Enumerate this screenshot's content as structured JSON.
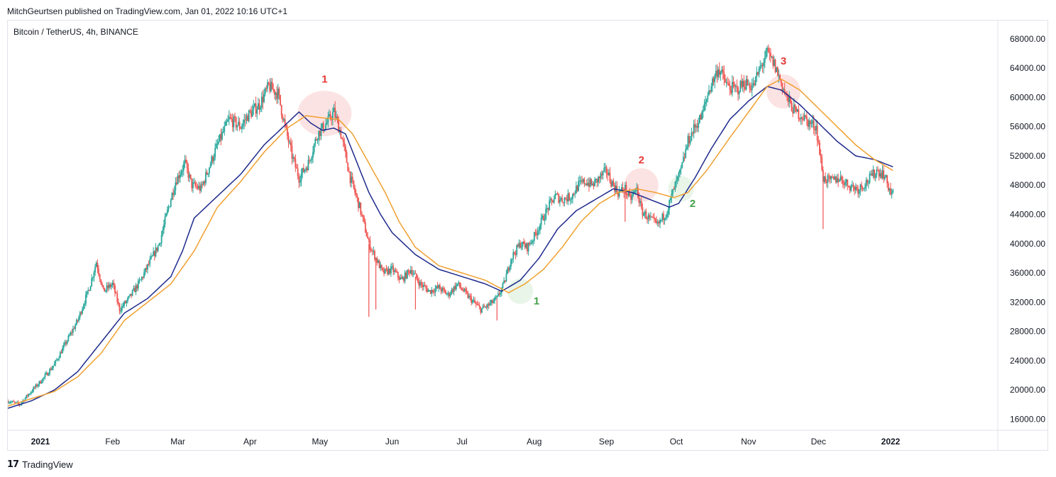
{
  "header": {
    "publisher": "MitchGeurtsen published on TradingView.com, Jan 01, 2022 10:16 UTC+1"
  },
  "symbol": {
    "label": "Bitcoin / TetherUS, 4h, BINANCE"
  },
  "footer": {
    "brand": "TradingView",
    "logo_icon": "tradingview-logo-icon"
  },
  "colors": {
    "up": "#26a69a",
    "down": "#ef5350",
    "ma_fast": "#1e2a8c",
    "ma_slow": "#f0a030",
    "red_marker": "#e53935",
    "green_marker": "#43a047"
  },
  "chart_data": {
    "type": "candlestick",
    "symbol": "Bitcoin / TetherUS",
    "interval": "4h",
    "exchange": "BINANCE",
    "y_ticks": [
      "68000.00",
      "64000.00",
      "60000.00",
      "56000.00",
      "52000.00",
      "48000.00",
      "44000.00",
      "40000.00",
      "36000.00",
      "32000.00",
      "28000.00",
      "24000.00",
      "20000.00",
      "16000.00"
    ],
    "ylim": [
      14500,
      70500
    ],
    "x_ticks": [
      "2021",
      "Feb",
      "Mar",
      "Apr",
      "May",
      "Jun",
      "Jul",
      "Aug",
      "Sep",
      "Oct",
      "Nov",
      "Dec",
      "2022"
    ],
    "x_tick_days": [
      14,
      45,
      73,
      104,
      134,
      165,
      195,
      226,
      257,
      287,
      318,
      348,
      379
    ],
    "xlim": [
      0,
      425
    ],
    "price_anchors": [
      [
        0,
        18500
      ],
      [
        5,
        18000
      ],
      [
        10,
        19800
      ],
      [
        15,
        21500
      ],
      [
        20,
        23500
      ],
      [
        25,
        26500
      ],
      [
        30,
        29500
      ],
      [
        35,
        34000
      ],
      [
        38,
        37500
      ],
      [
        41,
        33500
      ],
      [
        45,
        34500
      ],
      [
        48,
        31000
      ],
      [
        52,
        32500
      ],
      [
        57,
        35000
      ],
      [
        61,
        37500
      ],
      [
        65,
        40000
      ],
      [
        69,
        45000
      ],
      [
        72,
        48500
      ],
      [
        76,
        51000
      ],
      [
        79,
        48000
      ],
      [
        83,
        47500
      ],
      [
        87,
        51000
      ],
      [
        90,
        53500
      ],
      [
        95,
        57000
      ],
      [
        100,
        56000
      ],
      [
        103,
        57500
      ],
      [
        108,
        59000
      ],
      [
        112,
        61500
      ],
      [
        116,
        60500
      ],
      [
        119,
        56000
      ],
      [
        122,
        52000
      ],
      [
        125,
        49000
      ],
      [
        129,
        51000
      ],
      [
        133,
        55000
      ],
      [
        137,
        56500
      ],
      [
        140,
        58000
      ],
      [
        143,
        55000
      ],
      [
        147,
        49000
      ],
      [
        151,
        45000
      ],
      [
        155,
        40000
      ],
      [
        158,
        38000
      ],
      [
        161,
        36000
      ],
      [
        165,
        36500
      ],
      [
        169,
        35000
      ],
      [
        173,
        36500
      ],
      [
        177,
        34500
      ],
      [
        181,
        33500
      ],
      [
        185,
        34000
      ],
      [
        189,
        33000
      ],
      [
        193,
        34500
      ],
      [
        197,
        33000
      ],
      [
        200,
        32000
      ],
      [
        203,
        31000
      ],
      [
        206,
        31500
      ],
      [
        210,
        32500
      ],
      [
        213,
        34500
      ],
      [
        216,
        38000
      ],
      [
        220,
        40000
      ],
      [
        223,
        39500
      ],
      [
        226,
        41000
      ],
      [
        229,
        43000
      ],
      [
        232,
        45000
      ],
      [
        235,
        46500
      ],
      [
        238,
        46000
      ],
      [
        242,
        46500
      ],
      [
        245,
        48000
      ],
      [
        248,
        48500
      ],
      [
        251,
        48000
      ],
      [
        254,
        49000
      ],
      [
        257,
        50000
      ],
      [
        259,
        48500
      ],
      [
        262,
        47000
      ],
      [
        265,
        47500
      ],
      [
        267,
        46000
      ],
      [
        270,
        47500
      ],
      [
        272,
        44500
      ],
      [
        275,
        43500
      ],
      [
        279,
        42500
      ],
      [
        283,
        44500
      ],
      [
        286,
        47500
      ],
      [
        289,
        50000
      ],
      [
        292,
        54000
      ],
      [
        295,
        56000
      ],
      [
        298,
        57500
      ],
      [
        301,
        61000
      ],
      [
        305,
        64000
      ],
      [
        309,
        61500
      ],
      [
        313,
        61000
      ],
      [
        316,
        62000
      ],
      [
        320,
        61500
      ],
      [
        323,
        64000
      ],
      [
        326,
        66000
      ],
      [
        329,
        64500
      ],
      [
        332,
        62000
      ],
      [
        335,
        59500
      ],
      [
        338,
        58000
      ],
      [
        341,
        57500
      ],
      [
        344,
        56500
      ],
      [
        347,
        56000
      ],
      [
        350,
        49000
      ],
      [
        353,
        48500
      ],
      [
        357,
        49000
      ],
      [
        361,
        48000
      ],
      [
        365,
        47500
      ],
      [
        369,
        48500
      ],
      [
        373,
        50000
      ],
      [
        376,
        49500
      ],
      [
        379,
        47000
      ],
      [
        380,
        46800
      ]
    ],
    "series": [
      {
        "name": "",
        "color": "#1e2a8c",
        "anchors": [
          [
            0,
            17500
          ],
          [
            10,
            18500
          ],
          [
            20,
            20000
          ],
          [
            30,
            22500
          ],
          [
            40,
            26500
          ],
          [
            50,
            30500
          ],
          [
            60,
            32500
          ],
          [
            70,
            35500
          ],
          [
            75,
            39000
          ],
          [
            80,
            43500
          ],
          [
            90,
            46500
          ],
          [
            100,
            49500
          ],
          [
            110,
            53500
          ],
          [
            120,
            56500
          ],
          [
            125,
            58000
          ],
          [
            130,
            56500
          ],
          [
            135,
            55500
          ],
          [
            140,
            55800
          ],
          [
            145,
            55000
          ],
          [
            150,
            51000
          ],
          [
            155,
            47000
          ],
          [
            160,
            44000
          ],
          [
            165,
            41500
          ],
          [
            175,
            38500
          ],
          [
            185,
            36500
          ],
          [
            195,
            35500
          ],
          [
            205,
            34500
          ],
          [
            212,
            33500
          ],
          [
            220,
            35000
          ],
          [
            228,
            38000
          ],
          [
            236,
            42000
          ],
          [
            244,
            44500
          ],
          [
            252,
            46000
          ],
          [
            260,
            47500
          ],
          [
            268,
            47000
          ],
          [
            276,
            46000
          ],
          [
            284,
            45000
          ],
          [
            288,
            45500
          ],
          [
            295,
            49000
          ],
          [
            302,
            53000
          ],
          [
            310,
            57000
          ],
          [
            318,
            59500
          ],
          [
            326,
            61500
          ],
          [
            332,
            61000
          ],
          [
            340,
            59000
          ],
          [
            348,
            56500
          ],
          [
            356,
            54000
          ],
          [
            364,
            52000
          ],
          [
            372,
            51500
          ],
          [
            380,
            50500
          ]
        ]
      },
      {
        "name": "",
        "color": "#f0a030",
        "anchors": [
          [
            0,
            17800
          ],
          [
            10,
            18800
          ],
          [
            20,
            19800
          ],
          [
            30,
            21800
          ],
          [
            40,
            25000
          ],
          [
            50,
            29500
          ],
          [
            60,
            32000
          ],
          [
            70,
            34500
          ],
          [
            80,
            39000
          ],
          [
            90,
            45000
          ],
          [
            100,
            48500
          ],
          [
            110,
            52500
          ],
          [
            120,
            55800
          ],
          [
            128,
            57500
          ],
          [
            135,
            57200
          ],
          [
            142,
            57000
          ],
          [
            148,
            55000
          ],
          [
            155,
            51000
          ],
          [
            162,
            47000
          ],
          [
            168,
            43000
          ],
          [
            175,
            39500
          ],
          [
            185,
            37000
          ],
          [
            195,
            36000
          ],
          [
            205,
            35000
          ],
          [
            215,
            33300
          ],
          [
            222,
            34500
          ],
          [
            230,
            36500
          ],
          [
            238,
            39500
          ],
          [
            246,
            43000
          ],
          [
            254,
            45500
          ],
          [
            262,
            47000
          ],
          [
            270,
            47500
          ],
          [
            278,
            47000
          ],
          [
            286,
            46300
          ],
          [
            292,
            47000
          ],
          [
            300,
            50000
          ],
          [
            310,
            54500
          ],
          [
            318,
            58000
          ],
          [
            326,
            61500
          ],
          [
            332,
            62500
          ],
          [
            340,
            61000
          ],
          [
            348,
            58500
          ],
          [
            356,
            56000
          ],
          [
            364,
            53500
          ],
          [
            372,
            51500
          ],
          [
            380,
            50000
          ]
        ]
      }
    ],
    "spikes": [
      [
        128,
        50500
      ],
      [
        155,
        30000
      ],
      [
        158,
        31000
      ],
      [
        175,
        31000
      ],
      [
        210,
        29500
      ],
      [
        265,
        43000
      ],
      [
        350,
        42000
      ]
    ],
    "annotations": [
      {
        "label": "1",
        "kind": "red",
        "x": 136,
        "y": 62000,
        "circle": [
          136,
          57800
        ]
      },
      {
        "label": "2",
        "kind": "red",
        "x": 272,
        "y": 51000,
        "circle": [
          272,
          48000
        ]
      },
      {
        "label": "3",
        "kind": "red",
        "x": 333,
        "y": 64500,
        "circle": [
          333,
          60800
        ]
      },
      {
        "label": "1",
        "kind": "green",
        "x": 227,
        "y": 31700,
        "circle": [
          220,
          33500
        ]
      },
      {
        "label": "2",
        "kind": "green",
        "x": 294,
        "y": 45000,
        "circle": [
          289,
          47500
        ]
      }
    ]
  }
}
